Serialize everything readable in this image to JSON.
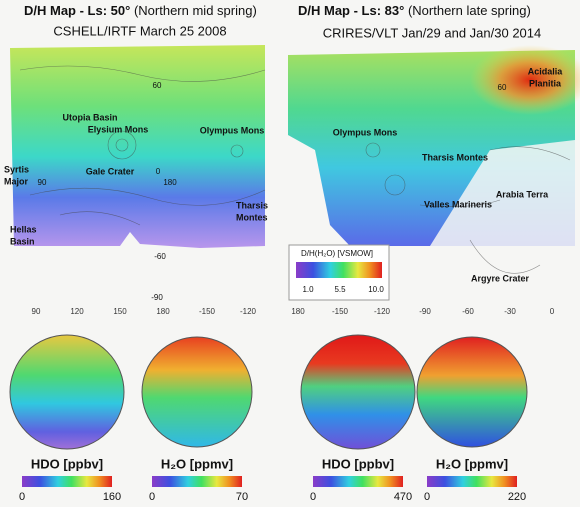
{
  "panels": [
    {
      "title": "D/H Map - Ls: 50°",
      "season": "(Northern mid spring)",
      "source": "CSHELL/IRTF March 25 2008",
      "map_labels": [
        [
          "Utopia Basin"
        ],
        [
          "Elysium Mons"
        ],
        [
          "Olympus Mons"
        ],
        [
          "Syrtis",
          "Major"
        ],
        [
          "Gale Crater"
        ],
        [
          "Tharsis",
          "Montes"
        ],
        [
          "Hellas",
          "Basin"
        ]
      ],
      "grid_labels": [
        "60",
        "0",
        "90",
        "180",
        "-60",
        "-90"
      ],
      "lon_ticks": [
        "90",
        "120",
        "150",
        "180",
        "-150",
        "-120"
      ],
      "globes": [
        {
          "label": "HDO [ppbv]",
          "min": "0",
          "max": "160"
        },
        {
          "label": "H₂O [ppmv]",
          "min": "0",
          "max": "70"
        }
      ]
    },
    {
      "title": "D/H Map - Ls: 83°",
      "season": "(Northern late spring)",
      "source": "CRIRES/VLT Jan/29 and Jan/30 2014",
      "map_labels": [
        [
          "Acidalia",
          "Planitia"
        ],
        [
          "Olympus Mons"
        ],
        [
          "Tharsis Montes"
        ],
        [
          "Arabia Terra"
        ],
        [
          "Valles Marineris"
        ],
        [
          "Argyre Crater"
        ]
      ],
      "grid_labels": [
        "60"
      ],
      "lon_ticks": [
        "180",
        "-150",
        "-120",
        "-90",
        "-60",
        "-30",
        "0"
      ],
      "globes": [
        {
          "label": "HDO [ppbv]",
          "min": "0",
          "max": "470"
        },
        {
          "label": "H₂O [ppmv]",
          "min": "0",
          "max": "220"
        }
      ]
    }
  ],
  "colorbar": {
    "title": "D/H(H₂O) [VSMOW]",
    "ticks": [
      "1.0",
      "5.5",
      "10.0"
    ]
  }
}
